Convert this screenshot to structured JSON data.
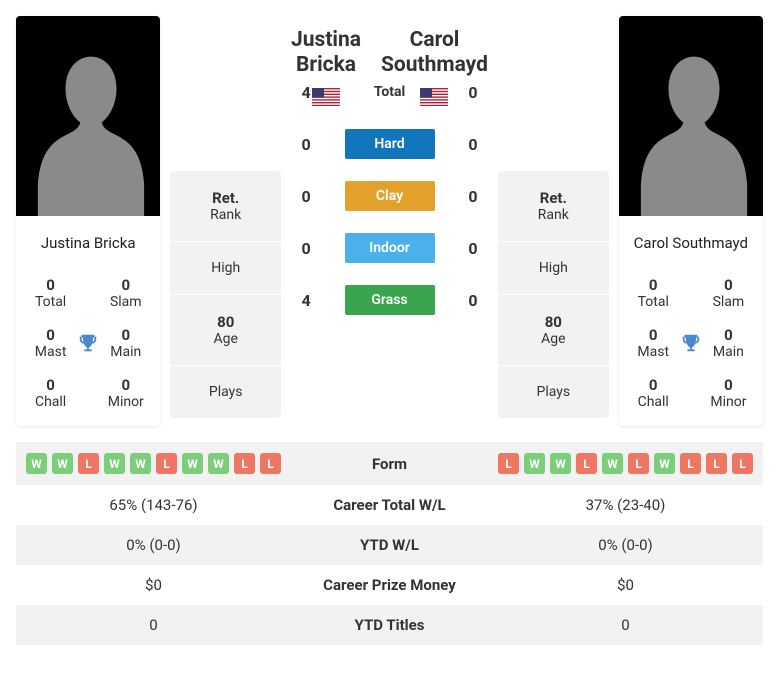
{
  "playerA": {
    "name_line1": "Justina",
    "name_line2": "Bricka",
    "full_name": "Justina Bricka",
    "trophies": {
      "total": {
        "value": "0",
        "label": "Total"
      },
      "slam": {
        "value": "0",
        "label": "Slam"
      },
      "mast": {
        "value": "0",
        "label": "Mast"
      },
      "main": {
        "value": "0",
        "label": "Main"
      },
      "chall": {
        "value": "0",
        "label": "Chall"
      },
      "minor": {
        "value": "0",
        "label": "Minor"
      }
    },
    "stats": {
      "rank": {
        "value": "Ret.",
        "label": "Rank"
      },
      "high": {
        "value": "",
        "label": "High"
      },
      "age": {
        "value": "80",
        "label": "Age"
      },
      "plays": {
        "value": "",
        "label": "Plays"
      }
    },
    "form": [
      "W",
      "W",
      "L",
      "W",
      "W",
      "L",
      "W",
      "W",
      "L",
      "L"
    ],
    "career_wl": "65% (143-76)",
    "ytd_wl": "0% (0-0)",
    "prize": "$0",
    "ytd_titles": "0"
  },
  "playerB": {
    "name_line1": "Carol",
    "name_line2": "Southmayd",
    "full_name": "Carol Southmayd",
    "trophies": {
      "total": {
        "value": "0",
        "label": "Total"
      },
      "slam": {
        "value": "0",
        "label": "Slam"
      },
      "mast": {
        "value": "0",
        "label": "Mast"
      },
      "main": {
        "value": "0",
        "label": "Main"
      },
      "chall": {
        "value": "0",
        "label": "Chall"
      },
      "minor": {
        "value": "0",
        "label": "Minor"
      }
    },
    "stats": {
      "rank": {
        "value": "Ret.",
        "label": "Rank"
      },
      "high": {
        "value": "",
        "label": "High"
      },
      "age": {
        "value": "80",
        "label": "Age"
      },
      "plays": {
        "value": "",
        "label": "Plays"
      }
    },
    "form": [
      "L",
      "W",
      "W",
      "L",
      "W",
      "L",
      "W",
      "L",
      "L",
      "L"
    ],
    "career_wl": "37% (23-40)",
    "ytd_wl": "0% (0-0)",
    "prize": "$0",
    "ytd_titles": "0"
  },
  "h2h": {
    "total": {
      "a": "4",
      "label": "Total",
      "b": "0"
    },
    "hard": {
      "a": "0",
      "label": "Hard",
      "b": "0"
    },
    "clay": {
      "a": "0",
      "label": "Clay",
      "b": "0"
    },
    "indoor": {
      "a": "0",
      "label": "Indoor",
      "b": "0"
    },
    "grass": {
      "a": "4",
      "label": "Grass",
      "b": "0"
    }
  },
  "tableLabels": {
    "form": "Form",
    "career_wl": "Career Total W/L",
    "ytd_wl": "YTD W/L",
    "prize": "Career Prize Money",
    "ytd_titles": "YTD Titles"
  },
  "colors": {
    "hard": "#1276bd",
    "clay": "#e2a12b",
    "indoor": "#4ab1ea",
    "grass": "#3aa54d",
    "win_badge": "#7bcf7b",
    "loss_badge": "#ed7763",
    "trophy": "#4a88cf"
  }
}
